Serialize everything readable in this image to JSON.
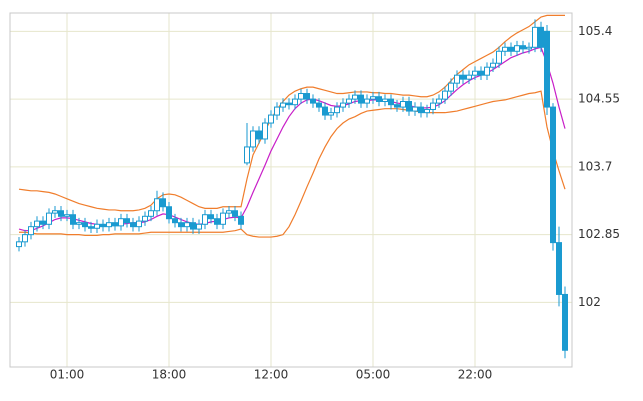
{
  "chart_data": {
    "type": "candlestick",
    "categories": [
      null,
      null,
      null,
      null,
      null,
      null,
      null,
      null,
      "01:00",
      null,
      null,
      null,
      null,
      null,
      null,
      null,
      null,
      null,
      null,
      null,
      null,
      null,
      null,
      null,
      null,
      "18:00",
      null,
      null,
      null,
      null,
      null,
      null,
      null,
      null,
      null,
      null,
      null,
      null,
      null,
      null,
      null,
      null,
      "12:00",
      null,
      null,
      null,
      null,
      null,
      null,
      null,
      null,
      null,
      null,
      null,
      null,
      null,
      null,
      null,
      null,
      "05:00",
      null,
      null,
      null,
      null,
      null,
      null,
      null,
      null,
      null,
      null,
      null,
      null,
      null,
      null,
      null,
      null,
      "22:00",
      null,
      null,
      null,
      null,
      null,
      null,
      null,
      null,
      null,
      null,
      null,
      null,
      null,
      null,
      null
    ],
    "open": [
      102.7,
      102.76,
      102.85,
      102.95,
      103.02,
      102.98,
      103.12,
      103.15,
      103.08,
      103.1,
      102.98,
      103.0,
      102.95,
      102.93,
      102.98,
      102.95,
      103.0,
      102.96,
      103.05,
      103.0,
      102.95,
      103.02,
      103.08,
      103.15,
      103.3,
      103.2,
      103.05,
      103.0,
      102.95,
      103.0,
      102.92,
      102.98,
      103.1,
      103.05,
      102.98,
      103.12,
      103.15,
      103.08,
      103.75,
      103.95,
      104.15,
      104.05,
      104.25,
      104.35,
      104.45,
      104.5,
      104.48,
      104.55,
      104.62,
      104.55,
      104.5,
      104.45,
      104.35,
      104.38,
      104.45,
      104.5,
      104.55,
      104.6,
      104.5,
      104.55,
      104.58,
      104.52,
      104.55,
      104.48,
      104.45,
      104.52,
      104.4,
      104.45,
      104.38,
      104.42,
      104.5,
      104.55,
      104.65,
      104.75,
      104.85,
      104.8,
      104.85,
      104.9,
      104.85,
      104.95,
      105.0,
      105.15,
      105.2,
      105.15,
      105.22,
      105.18,
      105.2,
      105.45,
      105.4,
      104.45,
      102.75,
      102.1
    ],
    "high": [
      102.82,
      102.91,
      103.01,
      103.08,
      103.08,
      103.18,
      103.21,
      103.21,
      103.16,
      103.16,
      103.06,
      103.06,
      103.01,
      103.04,
      103.04,
      103.06,
      103.06,
      103.11,
      103.11,
      103.06,
      103.08,
      103.14,
      103.21,
      103.4,
      103.38,
      103.26,
      103.11,
      103.06,
      103.06,
      103.06,
      103.04,
      103.16,
      103.16,
      103.11,
      103.18,
      103.21,
      103.21,
      103.14,
      104.25,
      104.21,
      104.21,
      104.31,
      104.41,
      104.51,
      104.56,
      104.56,
      104.61,
      104.68,
      104.68,
      104.61,
      104.56,
      104.51,
      104.44,
      104.51,
      104.56,
      104.61,
      104.66,
      104.66,
      104.61,
      104.64,
      104.64,
      104.61,
      104.61,
      104.54,
      104.58,
      104.58,
      104.51,
      104.51,
      104.48,
      104.56,
      104.61,
      104.71,
      104.81,
      104.91,
      104.91,
      104.91,
      104.96,
      104.96,
      105.01,
      105.06,
      105.21,
      105.26,
      105.26,
      105.28,
      105.28,
      105.26,
      105.55,
      105.52,
      105.48,
      104.5,
      102.95,
      102.2
    ],
    "low": [
      102.64,
      102.7,
      102.79,
      102.89,
      102.92,
      102.92,
      103.06,
      103.02,
      103.02,
      102.92,
      102.92,
      102.89,
      102.87,
      102.87,
      102.89,
      102.89,
      102.9,
      102.9,
      102.94,
      102.89,
      102.89,
      102.96,
      103.02,
      103.09,
      103.14,
      102.99,
      102.94,
      102.89,
      102.89,
      102.86,
      102.86,
      102.92,
      102.99,
      102.92,
      102.92,
      103.06,
      103.02,
      102.92,
      103.72,
      103.89,
      103.99,
      103.99,
      104.19,
      104.29,
      104.39,
      104.42,
      104.42,
      104.49,
      104.49,
      104.44,
      104.39,
      104.29,
      104.29,
      104.32,
      104.39,
      104.44,
      104.49,
      104.44,
      104.44,
      104.49,
      104.46,
      104.46,
      104.42,
      104.39,
      104.39,
      104.34,
      104.34,
      104.32,
      104.32,
      104.36,
      104.44,
      104.49,
      104.59,
      104.69,
      104.74,
      104.74,
      104.79,
      104.79,
      104.79,
      104.89,
      104.94,
      105.09,
      105.09,
      105.09,
      105.12,
      105.12,
      105.14,
      105.14,
      104.35,
      102.65,
      101.95,
      101.3
    ],
    "close": [
      102.76,
      102.85,
      102.95,
      103.02,
      102.98,
      103.12,
      103.15,
      103.08,
      103.1,
      102.98,
      103.0,
      102.95,
      102.93,
      102.98,
      102.95,
      103.0,
      102.96,
      103.05,
      103.0,
      102.95,
      103.02,
      103.08,
      103.15,
      103.3,
      103.2,
      103.05,
      103.0,
      102.95,
      103.0,
      102.92,
      102.98,
      103.1,
      103.05,
      102.98,
      103.12,
      103.15,
      103.08,
      102.98,
      103.95,
      104.15,
      104.05,
      104.25,
      104.35,
      104.45,
      104.5,
      104.48,
      104.55,
      104.62,
      104.55,
      104.5,
      104.45,
      104.35,
      104.38,
      104.45,
      104.5,
      104.55,
      104.6,
      104.5,
      104.55,
      104.58,
      104.52,
      104.55,
      104.48,
      104.45,
      104.52,
      104.4,
      104.45,
      104.38,
      104.42,
      104.5,
      104.55,
      104.65,
      104.75,
      104.85,
      104.8,
      104.85,
      104.9,
      104.85,
      104.95,
      105.0,
      105.15,
      105.2,
      105.15,
      105.22,
      105.18,
      105.2,
      105.45,
      105.2,
      104.45,
      102.75,
      102.1,
      101.4
    ],
    "color": "#1a9ad0",
    "lines": [
      {
        "color": "#f07d2c",
        "values": [
          103.42,
          103.41,
          103.4,
          103.4,
          103.39,
          103.38,
          103.36,
          103.33,
          103.3,
          103.27,
          103.24,
          103.22,
          103.2,
          103.18,
          103.17,
          103.16,
          103.16,
          103.15,
          103.15,
          103.15,
          103.16,
          103.18,
          103.22,
          103.3,
          103.35,
          103.36,
          103.35,
          103.32,
          103.28,
          103.24,
          103.2,
          103.18,
          103.18,
          103.18,
          103.2,
          103.2,
          103.2,
          103.2,
          103.55,
          103.85,
          104.0,
          104.15,
          104.3,
          104.42,
          104.52,
          104.6,
          104.65,
          104.68,
          104.7,
          104.7,
          104.68,
          104.66,
          104.64,
          104.62,
          104.62,
          104.63,
          104.64,
          104.64,
          104.64,
          104.63,
          104.63,
          104.62,
          104.62,
          104.61,
          104.6,
          104.6,
          104.59,
          104.58,
          104.58,
          104.6,
          104.64,
          104.7,
          104.78,
          104.86,
          104.92,
          104.98,
          105.02,
          105.06,
          105.1,
          105.14,
          105.2,
          105.27,
          105.33,
          105.38,
          105.42,
          105.46,
          105.52,
          105.58,
          105.6,
          105.6,
          105.6,
          105.6
        ]
      },
      {
        "color": "#f07d2c",
        "values": [
          102.88,
          102.88,
          102.87,
          102.86,
          102.86,
          102.86,
          102.86,
          102.86,
          102.85,
          102.85,
          102.85,
          102.84,
          102.84,
          102.84,
          102.85,
          102.85,
          102.86,
          102.86,
          102.86,
          102.86,
          102.86,
          102.87,
          102.88,
          102.88,
          102.88,
          102.88,
          102.88,
          102.88,
          102.88,
          102.88,
          102.88,
          102.88,
          102.88,
          102.88,
          102.88,
          102.89,
          102.9,
          102.92,
          102.85,
          102.83,
          102.82,
          102.82,
          102.82,
          102.83,
          102.85,
          102.95,
          103.1,
          103.27,
          103.45,
          103.62,
          103.8,
          103.95,
          104.08,
          104.18,
          104.25,
          104.3,
          104.33,
          104.37,
          104.4,
          104.41,
          104.42,
          104.43,
          104.43,
          104.43,
          104.42,
          104.41,
          104.4,
          104.39,
          104.38,
          104.38,
          104.38,
          104.38,
          104.39,
          104.4,
          104.42,
          104.44,
          104.46,
          104.48,
          104.5,
          104.52,
          104.53,
          104.54,
          104.56,
          104.58,
          104.6,
          104.62,
          104.63,
          104.65,
          104.2,
          103.9,
          103.65,
          103.42
        ]
      },
      {
        "color": "#c81fc8",
        "values": [
          102.92,
          102.9,
          102.9,
          102.93,
          102.96,
          103.0,
          103.04,
          103.06,
          103.06,
          103.05,
          103.03,
          103.01,
          102.99,
          102.98,
          102.97,
          102.97,
          102.97,
          102.98,
          102.99,
          103.0,
          103.0,
          103.01,
          103.04,
          103.08,
          103.11,
          103.1,
          103.07,
          103.04,
          103.01,
          102.99,
          102.98,
          102.99,
          103.01,
          103.02,
          103.04,
          103.06,
          103.07,
          103.06,
          103.2,
          103.38,
          103.55,
          103.72,
          103.9,
          104.05,
          104.2,
          104.33,
          104.43,
          104.5,
          104.54,
          104.55,
          104.53,
          104.5,
          104.47,
          104.46,
          104.47,
          104.49,
          104.52,
          104.53,
          104.53,
          104.54,
          104.54,
          104.53,
          104.52,
          104.5,
          104.49,
          104.47,
          104.45,
          104.44,
          104.44,
          104.45,
          104.48,
          104.53,
          104.6,
          104.67,
          104.73,
          104.78,
          104.82,
          104.85,
          104.88,
          104.92,
          104.97,
          105.02,
          105.07,
          105.1,
          105.13,
          105.15,
          105.18,
          105.2,
          105.0,
          104.75,
          104.45,
          104.18
        ]
      }
    ],
    "ylim": [
      101.19,
      105.63
    ],
    "yticks": [
      102,
      102.85,
      103.7,
      104.55,
      105.4
    ],
    "grid": true
  }
}
